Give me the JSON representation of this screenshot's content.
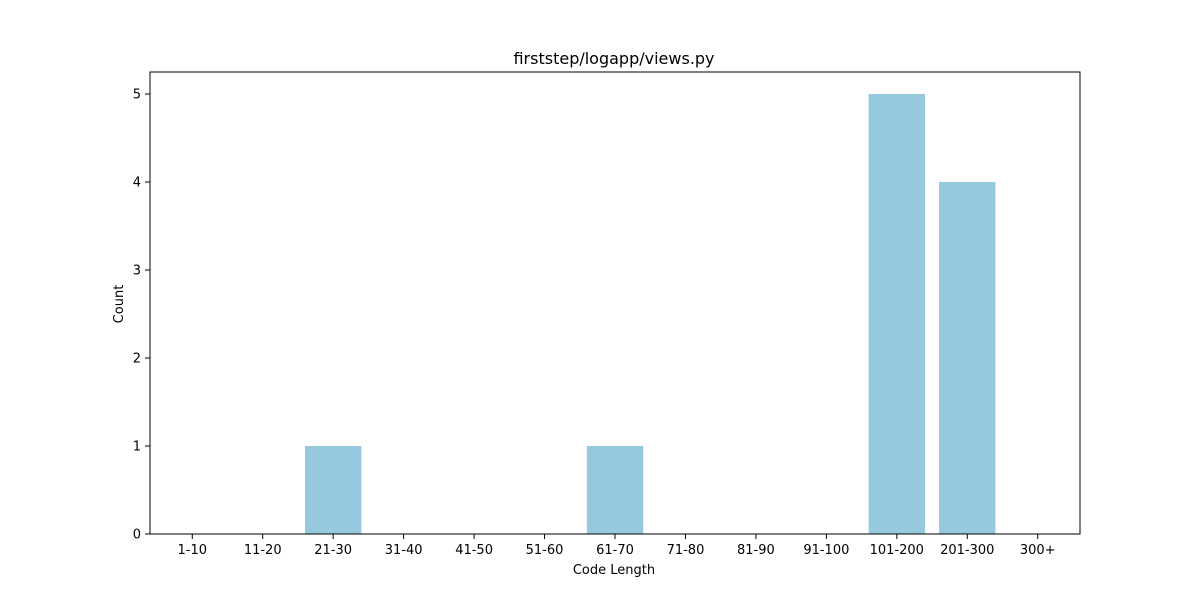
{
  "chart_data": {
    "type": "bar",
    "title": "firststep/logapp/views.py",
    "xlabel": "Code Length",
    "ylabel": "Count",
    "categories": [
      "1-10",
      "11-20",
      "21-30",
      "31-40",
      "41-50",
      "51-60",
      "61-70",
      "71-80",
      "81-90",
      "91-100",
      "101-200",
      "201-300",
      "300+"
    ],
    "values": [
      0,
      0,
      1,
      0,
      0,
      0,
      1,
      0,
      0,
      0,
      5,
      4,
      0
    ],
    "yticks": [
      "0",
      "1",
      "2",
      "3",
      "4",
      "5"
    ],
    "ylim": [
      0,
      5.25
    ],
    "grid": false,
    "bar_color": "#96c9dd"
  }
}
